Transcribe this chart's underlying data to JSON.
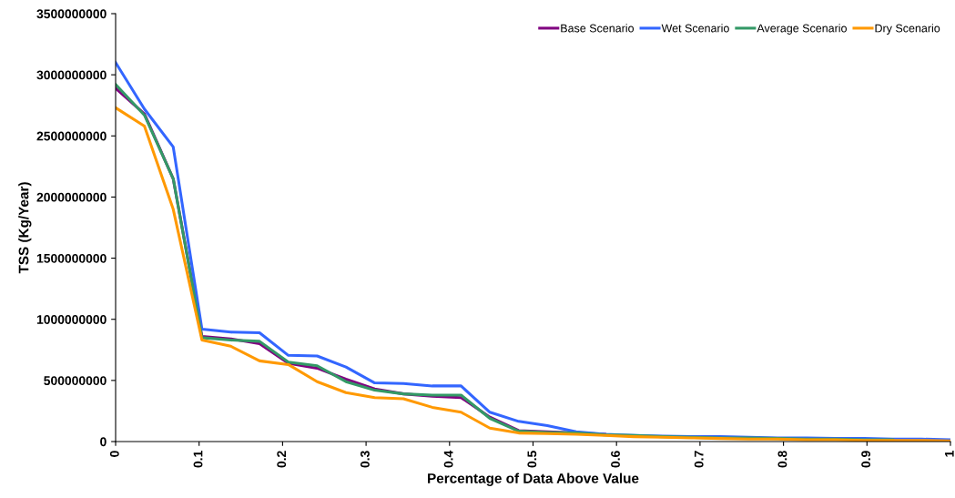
{
  "chart_data": {
    "type": "line",
    "xlabel": "Percentage of Data Above Value",
    "ylabel": "TSS (Kg/Year)",
    "x": [
      0,
      0.0345,
      0.069,
      0.1034,
      0.1379,
      0.1724,
      0.2069,
      0.2414,
      0.2759,
      0.3103,
      0.3448,
      0.3793,
      0.4138,
      0.4483,
      0.4828,
      0.5172,
      0.5517,
      0.5862,
      0.6207,
      0.6552,
      0.6897,
      0.7241,
      0.7586,
      0.7931,
      0.8276,
      0.8621,
      0.8966,
      0.931,
      0.9655,
      1
    ],
    "series": [
      {
        "name": "Base Scenario",
        "color": "#800080",
        "values": [
          2890000000.0,
          2680000000.0,
          2150000000.0,
          860000000.0,
          840000000.0,
          800000000.0,
          640000000.0,
          600000000.0,
          510000000.0,
          430000000.0,
          390000000.0,
          370000000.0,
          360000000.0,
          200000000.0,
          90000000.0,
          80000000.0,
          70000000.0,
          60000000.0,
          null,
          null,
          null,
          null,
          null,
          null,
          null,
          null,
          null,
          null,
          null,
          null
        ]
      },
      {
        "name": "Wet Scenario",
        "color": "#3366ff",
        "values": [
          3100000000.0,
          2720000000.0,
          2410000000.0,
          920000000.0,
          895000000.0,
          890000000.0,
          705000000.0,
          700000000.0,
          610000000.0,
          480000000.0,
          475000000.0,
          455000000.0,
          455000000.0,
          240000000.0,
          165000000.0,
          130000000.0,
          80000000.0,
          60000000.0,
          50000000.0,
          45000000.0,
          40000000.0,
          40000000.0,
          35000000.0,
          30000000.0,
          30000000.0,
          25000000.0,
          25000000.0,
          20000000.0,
          20000000.0,
          15000000.0
        ]
      },
      {
        "name": "Average Scenario",
        "color": "#339966",
        "values": [
          2920000000.0,
          2670000000.0,
          2150000000.0,
          850000000.0,
          830000000.0,
          820000000.0,
          650000000.0,
          620000000.0,
          490000000.0,
          420000000.0,
          390000000.0,
          380000000.0,
          380000000.0,
          190000000.0,
          85000000.0,
          75000000.0,
          70000000.0,
          55000000.0,
          50000000.0,
          40000000.0,
          35000000.0,
          30000000.0,
          30000000.0,
          25000000.0,
          20000000.0,
          20000000.0,
          15000000.0,
          15000000.0,
          null,
          null
        ]
      },
      {
        "name": "Dry Scenario",
        "color": "#ff9900",
        "values": [
          2730000000.0,
          2580000000.0,
          1900000000.0,
          830000000.0,
          780000000.0,
          660000000.0,
          630000000.0,
          490000000.0,
          400000000.0,
          360000000.0,
          350000000.0,
          280000000.0,
          240000000.0,
          110000000.0,
          70000000.0,
          65000000.0,
          60000000.0,
          50000000.0,
          40000000.0,
          35000000.0,
          30000000.0,
          25000000.0,
          20000000.0,
          20000000.0,
          15000000.0,
          15000000.0,
          10000000.0,
          10000000.0,
          10000000.0,
          5000000.0
        ]
      }
    ],
    "xlim": [
      0,
      1
    ],
    "xticks": [
      0,
      0.1,
      0.2,
      0.3,
      0.4,
      0.5,
      0.6,
      0.7,
      0.8,
      0.9,
      1
    ],
    "ylim": [
      0,
      3500000000
    ],
    "yticks": [
      0,
      500000000,
      1000000000,
      1500000000,
      2000000000,
      2500000000,
      3000000000,
      3500000000
    ],
    "legend": "top right",
    "grid": false,
    "marker": "none",
    "line_style": "solid"
  }
}
